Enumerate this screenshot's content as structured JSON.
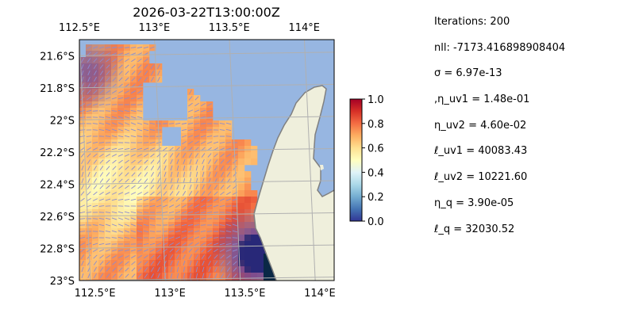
{
  "map": {
    "title": "2026-03-22T13:00:00Z",
    "lon_labels": [
      "112.5°E",
      "113°E",
      "113.5°E",
      "114°E"
    ],
    "lon_values": [
      112.5,
      113.0,
      113.5,
      114.0
    ],
    "lat_labels": [
      "21.6°S",
      "21.8°S",
      "22°S",
      "22.2°S",
      "22.4°S",
      "22.6°S",
      "22.8°S",
      "23°S"
    ],
    "lat_values": [
      -21.6,
      -21.8,
      -22.0,
      -22.2,
      -22.4,
      -22.6,
      -22.8,
      -23.0
    ],
    "extent": {
      "lon_min": 112.5,
      "lon_max": 114.2,
      "lat_min": -23.0,
      "lat_max": -21.5
    },
    "grid": true,
    "field_colormap": "RdYlBu_r-like",
    "ocean_color": "#97b6e1",
    "land_color": "#efefdc",
    "coast_color": "#808080",
    "arrow_color": "#8c8cd0"
  },
  "colorbar": {
    "ticks": [
      "0.0",
      "0.2",
      "0.4",
      "0.6",
      "0.8",
      "1.0"
    ],
    "tick_values": [
      0.0,
      0.2,
      0.4,
      0.6,
      0.8,
      1.0
    ],
    "range": [
      0.0,
      1.0
    ]
  },
  "params": [
    {
      "key": "iterations",
      "text": "Iterations: 200"
    },
    {
      "key": "nll",
      "text": "nll: -7173.416898908404"
    },
    {
      "key": "sigma",
      "text": "σ = 6.97e-13"
    },
    {
      "key": "eta_uv1",
      "text": ",η_uv1 = 1.48e-01"
    },
    {
      "key": "eta_uv2",
      "text": "η_uv2 = 4.60e-02"
    },
    {
      "key": "ell_uv1",
      "text": "ℓ_uv1 = 40083.43"
    },
    {
      "key": "ell_uv2",
      "text": "ℓ_uv2 = 10221.60"
    },
    {
      "key": "eta_q",
      "text": "η_q = 3.90e-05"
    },
    {
      "key": "ell_q",
      "text": "ℓ_q = 32030.52"
    }
  ]
}
